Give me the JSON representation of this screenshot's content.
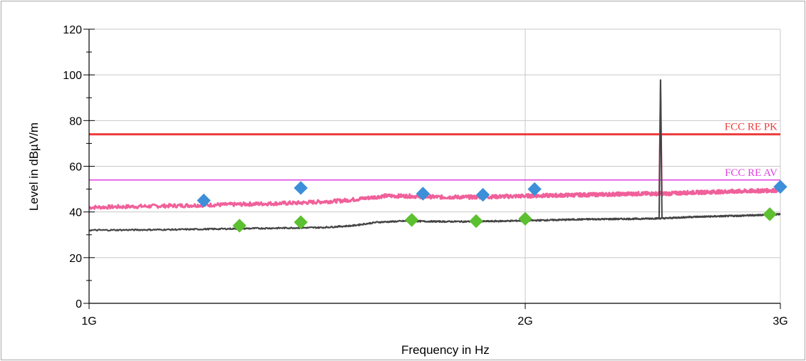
{
  "chart_data": {
    "type": "line",
    "x_scale": "log",
    "xlim": [
      1000000000,
      3000000000
    ],
    "ylim": [
      0,
      120
    ],
    "grid": true,
    "xlabel": "Frequency in Hz",
    "ylabel": "Level in dBµV/m",
    "x_ticks": [
      {
        "value": 1000000000,
        "label": "1G"
      },
      {
        "value": 2000000000,
        "label": "2G"
      },
      {
        "value": 3000000000,
        "label": "3G"
      }
    ],
    "y_ticks": [
      {
        "value": 0,
        "label": "0"
      },
      {
        "value": 20,
        "label": "20"
      },
      {
        "value": 40,
        "label": "40"
      },
      {
        "value": 60,
        "label": "60"
      },
      {
        "value": 80,
        "label": "80"
      },
      {
        "value": 100,
        "label": "100"
      },
      {
        "value": 120,
        "label": "120"
      }
    ],
    "limits": [
      {
        "name": "FCC RE PK",
        "value": 74,
        "color": "#ee3b3b"
      },
      {
        "name": "FCC RE AV",
        "value": 54,
        "color": "#e040e0"
      }
    ],
    "series": [
      {
        "color": "#f0609a",
        "values_x_ghz": [
          1.0,
          1.1,
          1.2,
          1.3,
          1.4,
          1.5,
          1.6,
          1.65,
          1.75,
          1.85,
          2.0,
          2.2,
          2.4,
          2.47,
          2.48,
          2.49,
          2.5,
          2.6,
          2.8,
          3.0
        ],
        "values_y": [
          42,
          42.5,
          43,
          43.5,
          44,
          45,
          47,
          47,
          46.5,
          46.5,
          47,
          47.5,
          48,
          48,
          98,
          48,
          48,
          48.5,
          49,
          49.5
        ]
      },
      {
        "color": "#444444",
        "values_x_ghz": [
          1.0,
          1.15,
          1.3,
          1.45,
          1.52,
          1.58,
          1.65,
          1.75,
          1.85,
          2.0,
          2.2,
          2.4,
          2.47,
          2.48,
          2.49,
          2.6,
          2.8,
          3.0
        ],
        "values_y": [
          32,
          32.3,
          32.8,
          33.2,
          34,
          35.5,
          36,
          35.8,
          35.8,
          36.2,
          36.8,
          37,
          37.2,
          98,
          37.2,
          37.8,
          38.3,
          39
        ]
      }
    ],
    "markers_peak": {
      "color": "#3c8fd8",
      "points": [
        {
          "x_ghz": 1.2,
          "y": 45
        },
        {
          "x_ghz": 1.4,
          "y": 50.5
        },
        {
          "x_ghz": 1.7,
          "y": 48
        },
        {
          "x_ghz": 1.87,
          "y": 47.5
        },
        {
          "x_ghz": 2.03,
          "y": 50
        },
        {
          "x_ghz": 3.0,
          "y": 51
        }
      ]
    },
    "markers_avg": {
      "color": "#5cc030",
      "points": [
        {
          "x_ghz": 1.27,
          "y": 34
        },
        {
          "x_ghz": 1.4,
          "y": 35.5
        },
        {
          "x_ghz": 1.67,
          "y": 36.5
        },
        {
          "x_ghz": 1.85,
          "y": 36
        },
        {
          "x_ghz": 2.0,
          "y": 37
        },
        {
          "x_ghz": 2.95,
          "y": 39
        }
      ]
    }
  }
}
